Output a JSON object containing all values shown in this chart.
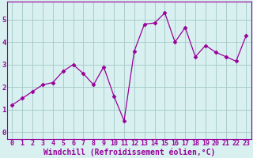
{
  "x": [
    0,
    1,
    2,
    3,
    4,
    5,
    6,
    7,
    8,
    9,
    10,
    11,
    12,
    13,
    14,
    15,
    16,
    17,
    18,
    19,
    20,
    21,
    22,
    23
  ],
  "y": [
    1.2,
    1.5,
    1.8,
    2.1,
    2.2,
    2.7,
    3.0,
    2.6,
    2.1,
    2.9,
    1.6,
    0.5,
    3.6,
    4.8,
    4.85,
    5.3,
    4.0,
    4.65,
    3.35,
    3.85,
    3.55,
    3.35,
    3.15,
    4.3
  ],
  "line_color": "#990099",
  "marker": "D",
  "marker_size": 2.5,
  "bg_color": "#d8f0f0",
  "grid_color": "#aacccc",
  "xlim": [
    -0.5,
    23.5
  ],
  "ylim": [
    -0.3,
    5.8
  ],
  "xlabel": "Windchill (Refroidissement éolien,°C)",
  "xtick_labels": [
    "0",
    "1",
    "2",
    "3",
    "4",
    "5",
    "6",
    "7",
    "8",
    "9",
    "10",
    "11",
    "12",
    "13",
    "14",
    "15",
    "16",
    "17",
    "18",
    "19",
    "20",
    "21",
    "22",
    "23"
  ],
  "yticks": [
    0,
    1,
    2,
    3,
    4,
    5
  ],
  "tick_fontsize": 6.0,
  "xlabel_fontsize": 7.0
}
